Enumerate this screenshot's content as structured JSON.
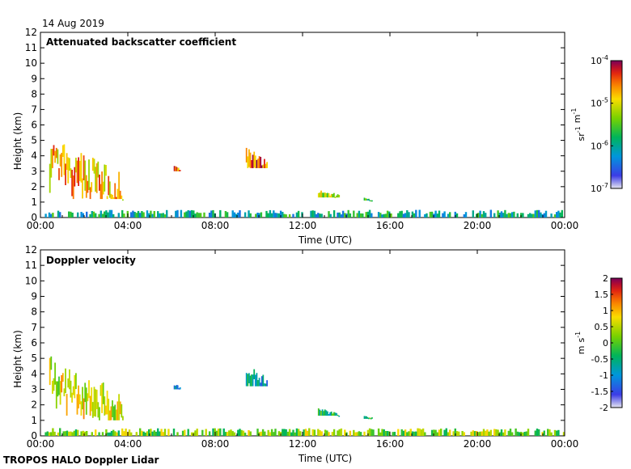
{
  "date_label": "14 Aug 2019",
  "footer": "TROPOS HALO Doppler Lidar",
  "colors": {
    "text": "#000000",
    "background": "#ffffff"
  },
  "chart_data": [
    {
      "type": "heatmap",
      "title": "Attenuated backscatter coefficient",
      "xlabel": "Time (UTC)",
      "ylabel": "Height (km)",
      "x_ticks": [
        "00:00",
        "04:00",
        "08:00",
        "12:00",
        "16:00",
        "20:00",
        "00:00"
      ],
      "x_range_hours": [
        0,
        24
      ],
      "y_ticks": [
        0,
        1,
        2,
        3,
        4,
        5,
        6,
        7,
        8,
        9,
        10,
        11,
        12
      ],
      "ylim": [
        0,
        12
      ],
      "colorbar": {
        "scale": "log",
        "unit": "sr-1 m-1",
        "ticks": [
          {
            "label": "10^-4",
            "value": -4
          },
          {
            "label": "10^-5",
            "value": -5
          },
          {
            "label": "10^-6",
            "value": -6
          },
          {
            "label": "10^-7",
            "value": -7
          }
        ],
        "range": [
          -7,
          -4
        ]
      },
      "features": [
        {
          "t0": 0.4,
          "t1": 3.8,
          "h0": 1.2,
          "h1": 5.3,
          "level": 0.75
        },
        {
          "t0": 6.1,
          "t1": 6.4,
          "h0": 3.0,
          "h1": 3.4,
          "level": 0.8
        },
        {
          "t0": 9.4,
          "t1": 10.4,
          "h0": 3.2,
          "h1": 4.6,
          "level": 0.85
        },
        {
          "t0": 12.7,
          "t1": 13.7,
          "h0": 1.3,
          "h1": 1.8,
          "level": 0.6
        },
        {
          "t0": 14.8,
          "t1": 15.2,
          "h0": 1.1,
          "h1": 1.3,
          "level": 0.4
        },
        {
          "t0": 0.2,
          "t1": 24,
          "h0": 0,
          "h1": 0.5,
          "level": 0.35
        }
      ]
    },
    {
      "type": "heatmap",
      "title": "Doppler velocity",
      "xlabel": "Time (UTC)",
      "ylabel": "Height (km)",
      "x_ticks": [
        "00:00",
        "04:00",
        "08:00",
        "12:00",
        "16:00",
        "20:00",
        "00:00"
      ],
      "x_range_hours": [
        0,
        24
      ],
      "y_ticks": [
        0,
        1,
        2,
        3,
        4,
        5,
        6,
        7,
        8,
        9,
        10,
        11,
        12
      ],
      "ylim": [
        0,
        12
      ],
      "colorbar": {
        "scale": "linear",
        "unit": "m s-1",
        "ticks": [
          {
            "label": "2",
            "value": 2
          },
          {
            "label": "1.5",
            "value": 1.5
          },
          {
            "label": "1",
            "value": 1
          },
          {
            "label": "0.5",
            "value": 0.5
          },
          {
            "label": "0",
            "value": 0
          },
          {
            "label": "-0.5",
            "value": -0.5
          },
          {
            "label": "-1",
            "value": -1
          },
          {
            "label": "-1.5",
            "value": -1.5
          },
          {
            "label": "-2",
            "value": -2
          }
        ],
        "range": [
          -2,
          2
        ]
      },
      "features": [
        {
          "t0": 0.4,
          "t1": 3.8,
          "h0": 1.0,
          "h1": 5.3,
          "level": 0.65
        },
        {
          "t0": 6.1,
          "t1": 6.4,
          "h0": 3.0,
          "h1": 3.4,
          "level": 0.2
        },
        {
          "t0": 9.4,
          "t1": 10.4,
          "h0": 3.2,
          "h1": 4.7,
          "level": 0.3
        },
        {
          "t0": 12.7,
          "t1": 13.7,
          "h0": 1.3,
          "h1": 1.8,
          "level": 0.4
        },
        {
          "t0": 14.8,
          "t1": 15.2,
          "h0": 1.1,
          "h1": 1.3,
          "level": 0.45
        },
        {
          "t0": 0.2,
          "t1": 24,
          "h0": 0,
          "h1": 0.5,
          "level": 0.55
        }
      ]
    }
  ]
}
